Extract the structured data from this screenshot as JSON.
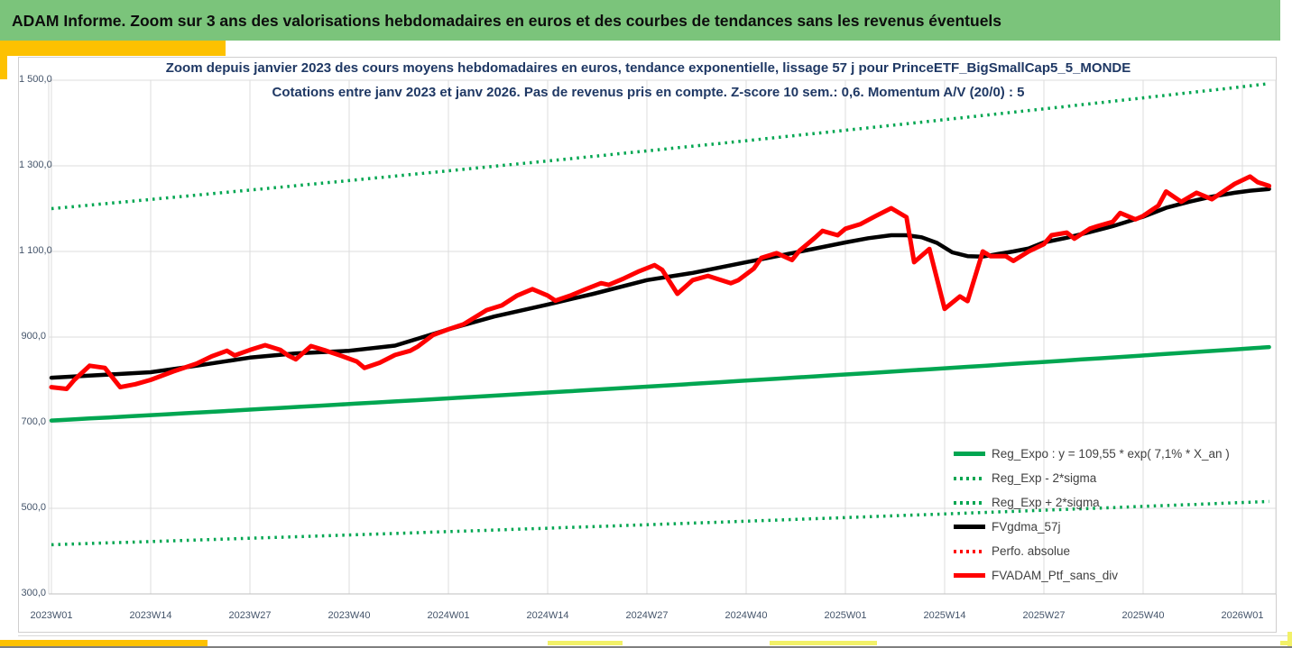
{
  "header": {
    "title": "ADAM Informe. Zoom sur 3 ans des valorisations hebdomadaires en euros et des courbes de tendances sans les revenus éventuels"
  },
  "chart": {
    "title_line1": "Zoom depuis janvier 2023 des cours moyens hebdomadaires en euros, tendance exponentielle, lissage 57 j pour PrinceETF_BigSmallCap5_5_MONDE",
    "title_line2": "Cotations entre janv 2023 et janv 2026. Pas de revenus pris en compte. Z-score 10 sem.: 0,6. Momentum A/V (20/0) : 5"
  },
  "colors": {
    "header_bg": "#7bc47b",
    "gold": "#fdc101",
    "pale_yellow": "#f2f168",
    "title_text": "#1f3864",
    "axis_text": "#44546a",
    "legend_text": "#404040",
    "grid": "#dcdcdc",
    "axis_line": "#bfbfbf",
    "green_line": "#00a651",
    "red_line": "#ff0000",
    "black_line": "#000000",
    "chart_border": "#d0cece",
    "bottom_rule": "#7f7f7f"
  },
  "chart_data": {
    "type": "line",
    "title": "Zoom depuis janvier 2023 des cours moyens hebdomadaires en euros, tendance exponentielle, lissage 57 j pour PrinceETF_BigSmallCap5_5_MONDE",
    "subtitle": "Cotations entre janv 2023 et janv 2026. Pas de revenus pris en compte. Z-score 10 sem.: 0,6. Momentum A/V (20/0) : 5",
    "xlabel": "",
    "ylabel": "",
    "ylim": [
      300,
      1500
    ],
    "grid": true,
    "legend_position": "inside-bottom-right",
    "x_unit": "ISO week",
    "weeks_end": 159.5,
    "x_tick_weeks": [
      0,
      13,
      26,
      39,
      52,
      65,
      78,
      91,
      104,
      117,
      130,
      143,
      156
    ],
    "x_tick_labels": [
      "2023W01",
      "2023W14",
      "2023W27",
      "2023W40",
      "2024W01",
      "2024W14",
      "2024W27",
      "2024W40",
      "2025W01",
      "2025W14",
      "2025W27",
      "2025W40",
      "2026W01"
    ],
    "y_tick_values": [
      300,
      500,
      700,
      900,
      1100,
      1300,
      1500
    ],
    "y_tick_labels": [
      "300,0",
      "500,0",
      "700,0",
      "900,0",
      "1 100,0",
      "1 300,0",
      "1 500,0"
    ],
    "series": [
      {
        "name": "Reg_Expo : y = 109,55 * exp( 7,1% *  X_an )",
        "color": "#00a651",
        "style": "solid",
        "width": 4.5,
        "model": {
          "type": "exponential",
          "value_week0": 705,
          "annual_rate": 0.071
        }
      },
      {
        "name": "Reg_Exp - 2*sigma",
        "color": "#00a651",
        "style": "dotted",
        "width": 3.5,
        "model": {
          "type": "exponential",
          "value_week0": 415,
          "annual_rate": 0.071
        }
      },
      {
        "name": "Reg_Exp + 2*sigma",
        "color": "#00a651",
        "style": "dotted",
        "width": 3.5,
        "model": {
          "type": "exponential",
          "value_week0": 1200,
          "annual_rate": 0.071
        }
      },
      {
        "name": "FVgdma_57j",
        "color": "#000000",
        "style": "solid",
        "width": 4.5,
        "points": [
          [
            0,
            805
          ],
          [
            5,
            810
          ],
          [
            13,
            818
          ],
          [
            19,
            833
          ],
          [
            26,
            852
          ],
          [
            32,
            862
          ],
          [
            39,
            868
          ],
          [
            45,
            880
          ],
          [
            52,
            918
          ],
          [
            58,
            948
          ],
          [
            65,
            976
          ],
          [
            71,
            1001
          ],
          [
            78,
            1033
          ],
          [
            84,
            1050
          ],
          [
            91,
            1075
          ],
          [
            97,
            1096
          ],
          [
            104,
            1121
          ],
          [
            107,
            1131
          ],
          [
            110,
            1138
          ],
          [
            112,
            1138
          ],
          [
            114,
            1133
          ],
          [
            116,
            1120
          ],
          [
            118,
            1098
          ],
          [
            120,
            1089
          ],
          [
            122,
            1088
          ],
          [
            124,
            1094
          ],
          [
            126,
            1100
          ],
          [
            128,
            1107
          ],
          [
            130,
            1121
          ],
          [
            133,
            1132
          ],
          [
            136,
            1145
          ],
          [
            139,
            1159
          ],
          [
            143,
            1181
          ],
          [
            146,
            1202
          ],
          [
            149,
            1216
          ],
          [
            152,
            1228
          ],
          [
            155,
            1237
          ],
          [
            157,
            1242
          ],
          [
            159.5,
            1246
          ]
        ]
      },
      {
        "name": "Perfo. absolue",
        "color": "#ff0000",
        "style": "dotted",
        "width": 3.5,
        "points_same_as": "FVADAM_Ptf_sans_div",
        "note": "identical to FVADAM_Ptf_sans_div, hidden beneath the solid red curve"
      },
      {
        "name": "FVADAM_Ptf_sans_div",
        "color": "#ff0000",
        "style": "solid",
        "width": 5,
        "points": [
          [
            0,
            783
          ],
          [
            2,
            779
          ],
          [
            3,
            800
          ],
          [
            5,
            833
          ],
          [
            7,
            828
          ],
          [
            9,
            783
          ],
          [
            11,
            790
          ],
          [
            13,
            800
          ],
          [
            16,
            820
          ],
          [
            19,
            838
          ],
          [
            21,
            855
          ],
          [
            23,
            868
          ],
          [
            24,
            857
          ],
          [
            26,
            870
          ],
          [
            28,
            881
          ],
          [
            30,
            870
          ],
          [
            31,
            857
          ],
          [
            32,
            848
          ],
          [
            34,
            879
          ],
          [
            36,
            868
          ],
          [
            38,
            856
          ],
          [
            40,
            843
          ],
          [
            41,
            828
          ],
          [
            43,
            840
          ],
          [
            45,
            858
          ],
          [
            47,
            868
          ],
          [
            48,
            878
          ],
          [
            50,
            905
          ],
          [
            52,
            918
          ],
          [
            54,
            930
          ],
          [
            57,
            963
          ],
          [
            59,
            974
          ],
          [
            61,
            997
          ],
          [
            63,
            1012
          ],
          [
            65,
            997
          ],
          [
            66,
            985
          ],
          [
            68,
            997
          ],
          [
            70,
            1012
          ],
          [
            72,
            1026
          ],
          [
            73,
            1022
          ],
          [
            75,
            1037
          ],
          [
            77,
            1054
          ],
          [
            79,
            1068
          ],
          [
            80,
            1057
          ],
          [
            82,
            1001
          ],
          [
            84,
            1033
          ],
          [
            86,
            1043
          ],
          [
            87,
            1037
          ],
          [
            89,
            1026
          ],
          [
            90,
            1033
          ],
          [
            92,
            1060
          ],
          [
            93,
            1085
          ],
          [
            95,
            1096
          ],
          [
            97,
            1080
          ],
          [
            98,
            1102
          ],
          [
            100,
            1132
          ],
          [
            101,
            1148
          ],
          [
            103,
            1138
          ],
          [
            104,
            1153
          ],
          [
            106,
            1164
          ],
          [
            108,
            1183
          ],
          [
            110,
            1201
          ],
          [
            112,
            1180
          ],
          [
            113,
            1075
          ],
          [
            115,
            1106
          ],
          [
            117,
            966
          ],
          [
            119,
            995
          ],
          [
            120,
            984
          ],
          [
            122,
            1100
          ],
          [
            123,
            1089
          ],
          [
            125,
            1089
          ],
          [
            126,
            1078
          ],
          [
            128,
            1100
          ],
          [
            130,
            1117
          ],
          [
            131,
            1138
          ],
          [
            133,
            1144
          ],
          [
            134,
            1130
          ],
          [
            136,
            1153
          ],
          [
            137,
            1159
          ],
          [
            139,
            1169
          ],
          [
            140,
            1190
          ],
          [
            142,
            1175
          ],
          [
            143,
            1183
          ],
          [
            145,
            1207
          ],
          [
            146,
            1240
          ],
          [
            148,
            1216
          ],
          [
            150,
            1237
          ],
          [
            152,
            1222
          ],
          [
            155,
            1258
          ],
          [
            157,
            1275
          ],
          [
            158,
            1262
          ],
          [
            159.5,
            1253
          ]
        ]
      }
    ]
  }
}
